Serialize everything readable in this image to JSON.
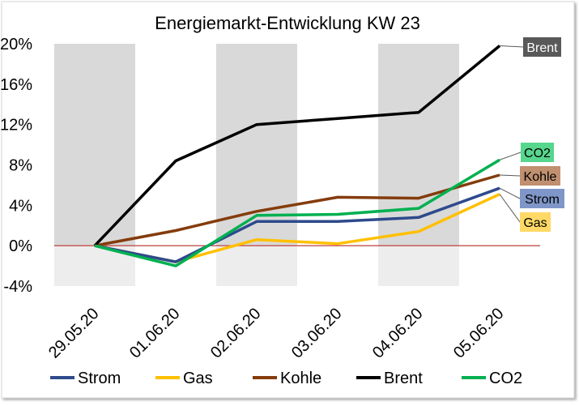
{
  "chart_data": {
    "type": "line",
    "title": "Energiemarkt-Entwicklung KW 23",
    "categories": [
      "29.05.20",
      "01.06.20",
      "02.06.20",
      "03.06.20",
      "04.06.20",
      "05.06.20"
    ],
    "y_ticks": [
      "20%",
      "16%",
      "12%",
      "8%",
      "4%",
      "0%",
      "-4%"
    ],
    "y_tick_values": [
      20,
      16,
      12,
      8,
      4,
      0,
      -4
    ],
    "ylim": [
      -4,
      20
    ],
    "grid": false,
    "background_bands": "alternating grey columns",
    "legend_position": "bottom",
    "series": [
      {
        "name": "Strom",
        "color": "#2e4a8c",
        "values": [
          0,
          -1.6,
          2.4,
          2.4,
          2.8,
          5.7
        ]
      },
      {
        "name": "Gas",
        "color": "#ffc000",
        "values": [
          0,
          -1.6,
          0.6,
          0.2,
          1.4,
          5.1
        ]
      },
      {
        "name": "Kohle",
        "color": "#843c0c",
        "values": [
          0,
          1.5,
          3.4,
          4.8,
          4.7,
          7.0
        ]
      },
      {
        "name": "Brent",
        "color": "#000000",
        "values": [
          0,
          8.4,
          12.0,
          12.6,
          13.2,
          19.8
        ]
      },
      {
        "name": "CO2",
        "color": "#00b050",
        "values": [
          0,
          -2.0,
          3.0,
          3.1,
          3.7,
          8.5
        ]
      }
    ],
    "end_labels": [
      {
        "series": "Brent",
        "text": "Brent",
        "bg": "#595959",
        "fg": "#ffffff"
      },
      {
        "series": "CO2",
        "text": "CO2",
        "bg": "#57d68d",
        "fg": "#000000"
      },
      {
        "series": "Kohle",
        "text": "Kohle",
        "bg": "#c09070",
        "fg": "#000000"
      },
      {
        "series": "Strom",
        "text": "Strom",
        "bg": "#7f96c8",
        "fg": "#000000"
      },
      {
        "series": "Gas",
        "text": "Gas",
        "bg": "#ffd966",
        "fg": "#000000"
      }
    ]
  }
}
